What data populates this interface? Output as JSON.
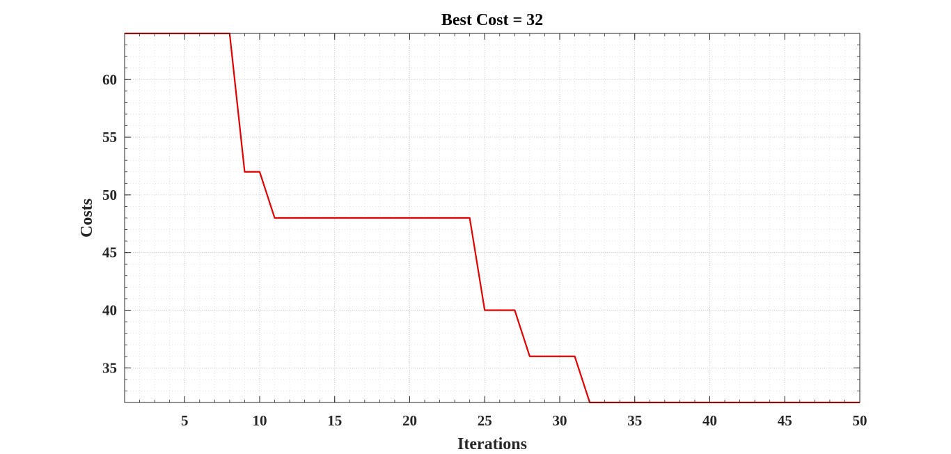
{
  "chart_data": {
    "type": "line",
    "title": "Best Cost = 32",
    "xlabel": "Iterations",
    "ylabel": "Costs",
    "xlim": [
      1,
      50
    ],
    "ylim": [
      32,
      64
    ],
    "xticks": [
      5,
      10,
      15,
      20,
      25,
      30,
      35,
      40,
      45,
      50
    ],
    "yticks": [
      35,
      40,
      45,
      50,
      55,
      60
    ],
    "grid": true,
    "minor_grid": true,
    "legend": false,
    "series": [
      {
        "color": "#e00000",
        "x": [
          1,
          2,
          3,
          4,
          5,
          6,
          7,
          8,
          9,
          10,
          11,
          12,
          13,
          14,
          15,
          16,
          17,
          18,
          19,
          20,
          21,
          22,
          23,
          24,
          25,
          26,
          27,
          28,
          29,
          30,
          31,
          32,
          33,
          34,
          35,
          36,
          37,
          38,
          39,
          40,
          41,
          42,
          43,
          44,
          45,
          46,
          47,
          48,
          49,
          50
        ],
        "y": [
          64,
          64,
          64,
          64,
          64,
          64,
          64,
          64,
          52,
          52,
          48,
          48,
          48,
          48,
          48,
          48,
          48,
          48,
          48,
          48,
          48,
          48,
          48,
          48,
          40,
          40,
          40,
          36,
          36,
          36,
          36,
          32,
          32,
          32,
          32,
          32,
          32,
          32,
          32,
          32,
          32,
          32,
          32,
          32,
          32,
          32,
          32,
          32,
          32,
          32
        ]
      }
    ]
  }
}
